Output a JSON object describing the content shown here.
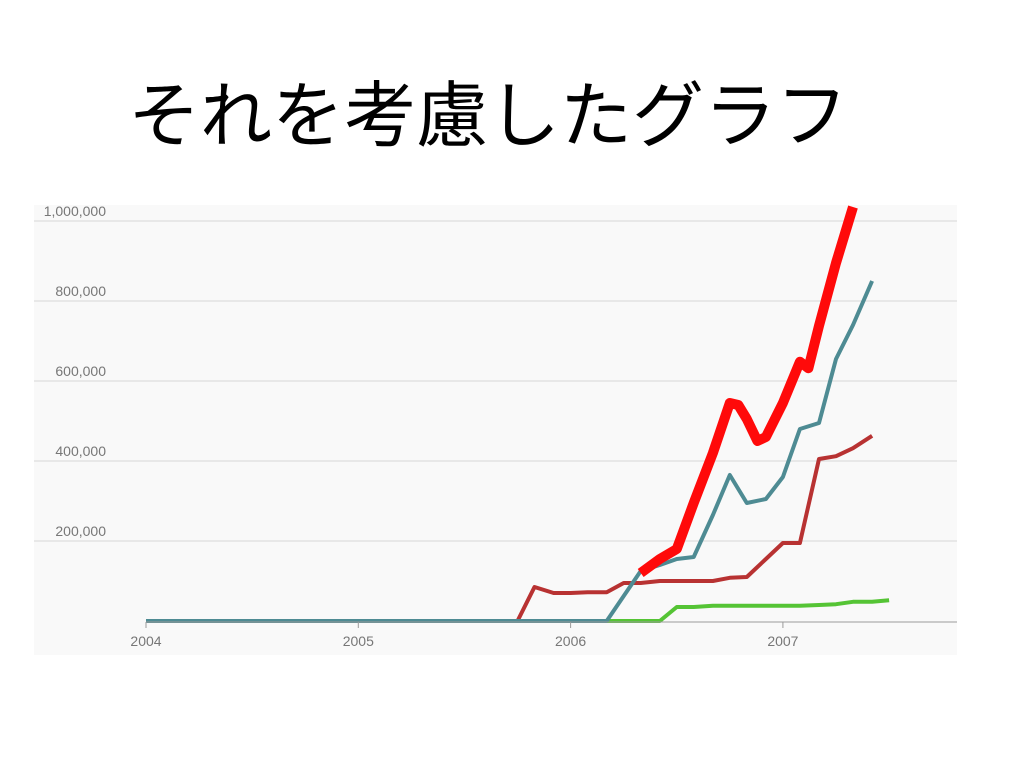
{
  "slide": {
    "title": "それを考慮したグラフ"
  },
  "chart_data": {
    "type": "line",
    "title": "",
    "xlabel": "",
    "ylabel": "",
    "x_range": [
      2004.0,
      2007.82
    ],
    "ylim": [
      0,
      1040000
    ],
    "x_ticks": [
      {
        "value": 2004,
        "label": "2004"
      },
      {
        "value": 2005,
        "label": "2005"
      },
      {
        "value": 2006,
        "label": "2006"
      },
      {
        "value": 2007,
        "label": "2007"
      }
    ],
    "y_ticks": [
      {
        "value": 200000,
        "label": "200,000"
      },
      {
        "value": 400000,
        "label": "400,000"
      },
      {
        "value": 600000,
        "label": "600,000"
      },
      {
        "value": 800000,
        "label": "800,000"
      },
      {
        "value": 1000000,
        "label": "1,000,000"
      }
    ],
    "grid": true,
    "legend": "none",
    "series": [
      {
        "color": "#55c435",
        "width": 4,
        "points": [
          [
            2004.0,
            0
          ],
          [
            2006.17,
            0
          ],
          [
            2006.42,
            0
          ],
          [
            2006.5,
            35000
          ],
          [
            2006.58,
            35000
          ],
          [
            2006.67,
            38000
          ],
          [
            2006.75,
            38000
          ],
          [
            2006.83,
            38000
          ],
          [
            2006.92,
            38000
          ],
          [
            2007.0,
            38000
          ],
          [
            2007.08,
            38000
          ],
          [
            2007.17,
            40000
          ],
          [
            2007.25,
            42000
          ],
          [
            2007.33,
            48000
          ],
          [
            2007.42,
            48000
          ],
          [
            2007.5,
            52000
          ]
        ]
      },
      {
        "color": "#b83232",
        "width": 4,
        "points": [
          [
            2004.0,
            0
          ],
          [
            2005.75,
            0
          ],
          [
            2005.83,
            85000
          ],
          [
            2005.92,
            70000
          ],
          [
            2006.0,
            70000
          ],
          [
            2006.08,
            72000
          ],
          [
            2006.17,
            72000
          ],
          [
            2006.25,
            95000
          ],
          [
            2006.33,
            95000
          ],
          [
            2006.42,
            100000
          ],
          [
            2006.5,
            100000
          ],
          [
            2006.58,
            100000
          ],
          [
            2006.67,
            100000
          ],
          [
            2006.75,
            108000
          ],
          [
            2006.83,
            110000
          ],
          [
            2006.92,
            155000
          ],
          [
            2007.0,
            195000
          ],
          [
            2007.08,
            195000
          ],
          [
            2007.17,
            405000
          ],
          [
            2007.25,
            412000
          ],
          [
            2007.33,
            432000
          ],
          [
            2007.42,
            463000
          ]
        ]
      },
      {
        "color": "#4e8b93",
        "width": 4,
        "points": [
          [
            2004.0,
            0
          ],
          [
            2006.17,
            0
          ],
          [
            2006.33,
            125000
          ],
          [
            2006.42,
            140000
          ],
          [
            2006.5,
            155000
          ],
          [
            2006.58,
            160000
          ],
          [
            2006.67,
            265000
          ],
          [
            2006.75,
            365000
          ],
          [
            2006.83,
            295000
          ],
          [
            2006.92,
            305000
          ],
          [
            2007.0,
            360000
          ],
          [
            2007.08,
            480000
          ],
          [
            2007.17,
            495000
          ],
          [
            2007.25,
            655000
          ],
          [
            2007.33,
            740000
          ],
          [
            2007.42,
            850000
          ]
        ]
      },
      {
        "color": "#ff0a0a",
        "width": 10,
        "points": [
          [
            2006.33,
            120000
          ],
          [
            2006.42,
            155000
          ],
          [
            2006.5,
            180000
          ],
          [
            2006.58,
            295000
          ],
          [
            2006.67,
            420000
          ],
          [
            2006.75,
            545000
          ],
          [
            2006.79,
            540000
          ],
          [
            2006.83,
            505000
          ],
          [
            2006.88,
            450000
          ],
          [
            2006.92,
            460000
          ],
          [
            2007.0,
            545000
          ],
          [
            2007.08,
            648000
          ],
          [
            2007.12,
            632000
          ],
          [
            2007.17,
            738000
          ],
          [
            2007.25,
            895000
          ],
          [
            2007.33,
            1035000
          ]
        ]
      }
    ]
  }
}
